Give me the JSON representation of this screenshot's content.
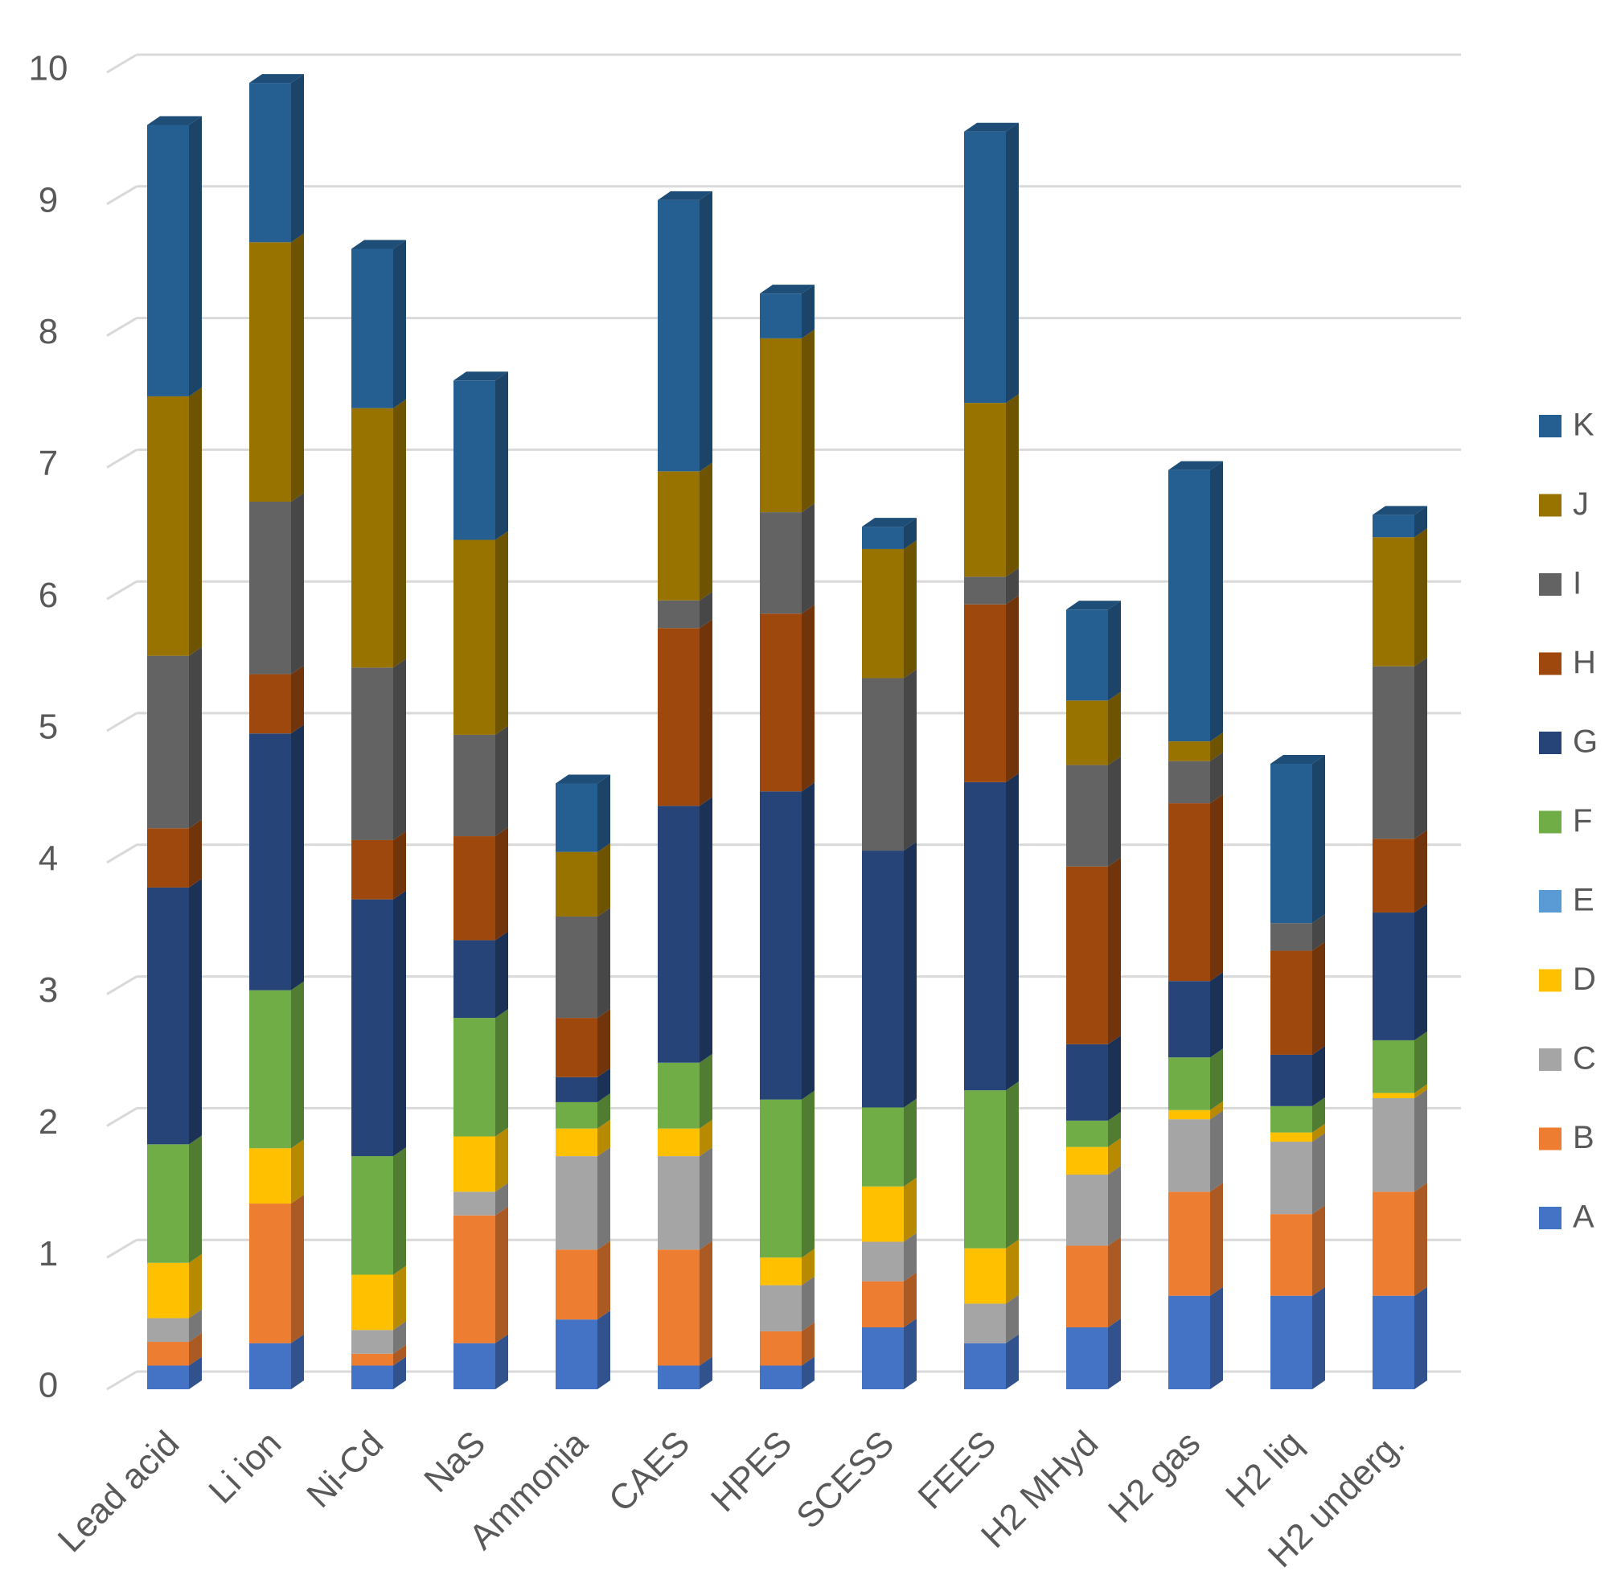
{
  "chart_data": {
    "type": "bar",
    "stacked": true,
    "style": "3d-stacked-column",
    "title": "",
    "xlabel": "",
    "ylabel": "",
    "ylim": [
      0,
      10
    ],
    "yticks": [
      0,
      1,
      2,
      3,
      4,
      5,
      6,
      7,
      8,
      9,
      10
    ],
    "grid": true,
    "legend_position": "right",
    "categories": [
      "Lead acid",
      "Li ion",
      "Ni-Cd",
      "NaS",
      "Ammonia",
      "CAES",
      "HPES",
      "SCESS",
      "FEES",
      "H2 MHyd",
      "H2 gas",
      "H2 liq",
      "H2 underg."
    ],
    "series": [
      {
        "name": "A",
        "color": "#4472C4",
        "values": [
          0.18,
          0.35,
          0.18,
          0.35,
          0.53,
          0.18,
          0.18,
          0.47,
          0.35,
          0.47,
          0.71,
          0.71,
          0.71
        ]
      },
      {
        "name": "B",
        "color": "#ED7D31",
        "values": [
          0.18,
          1.06,
          0.09,
          0.97,
          0.53,
          0.88,
          0.26,
          0.35,
          0.0,
          0.62,
          0.79,
          0.62,
          0.79
        ]
      },
      {
        "name": "C",
        "color": "#A5A5A5",
        "values": [
          0.18,
          0.0,
          0.18,
          0.18,
          0.71,
          0.71,
          0.35,
          0.3,
          0.3,
          0.54,
          0.55,
          0.55,
          0.71
        ]
      },
      {
        "name": "D",
        "color": "#FFC000",
        "values": [
          0.42,
          0.42,
          0.42,
          0.42,
          0.21,
          0.21,
          0.21,
          0.42,
          0.42,
          0.21,
          0.07,
          0.07,
          0.04
        ]
      },
      {
        "name": "E",
        "color": "#5B9BD5",
        "values": [
          0.0,
          0.0,
          0.0,
          0.0,
          0.0,
          0.0,
          0.0,
          0.0,
          0.0,
          0.0,
          0.0,
          0.0,
          0.0
        ]
      },
      {
        "name": "F",
        "color": "#70AD47",
        "values": [
          0.9,
          1.2,
          0.9,
          0.9,
          0.2,
          0.5,
          1.2,
          0.6,
          1.2,
          0.2,
          0.4,
          0.2,
          0.4
        ]
      },
      {
        "name": "G",
        "color": "#264478",
        "values": [
          1.95,
          1.95,
          1.95,
          0.59,
          0.19,
          1.95,
          2.34,
          1.95,
          2.34,
          0.58,
          0.58,
          0.39,
          0.97
        ]
      },
      {
        "name": "H",
        "color": "#9E480E",
        "values": [
          0.45,
          0.45,
          0.45,
          0.79,
          0.45,
          1.35,
          1.35,
          0.0,
          1.35,
          1.35,
          1.35,
          0.79,
          0.56
        ]
      },
      {
        "name": "I",
        "color": "#636363",
        "values": [
          1.31,
          1.31,
          1.31,
          0.77,
          0.77,
          0.21,
          0.77,
          1.31,
          0.21,
          0.77,
          0.32,
          0.21,
          1.31
        ]
      },
      {
        "name": "J",
        "color": "#997300",
        "values": [
          1.97,
          1.97,
          1.97,
          1.48,
          0.49,
          0.98,
          1.32,
          0.98,
          1.32,
          0.49,
          0.15,
          0.0,
          0.98
        ]
      },
      {
        "name": "K",
        "color": "#255E91",
        "values": [
          2.06,
          1.21,
          1.21,
          1.21,
          0.52,
          2.06,
          0.34,
          0.17,
          2.06,
          0.69,
          2.06,
          1.21,
          0.17
        ]
      }
    ]
  }
}
